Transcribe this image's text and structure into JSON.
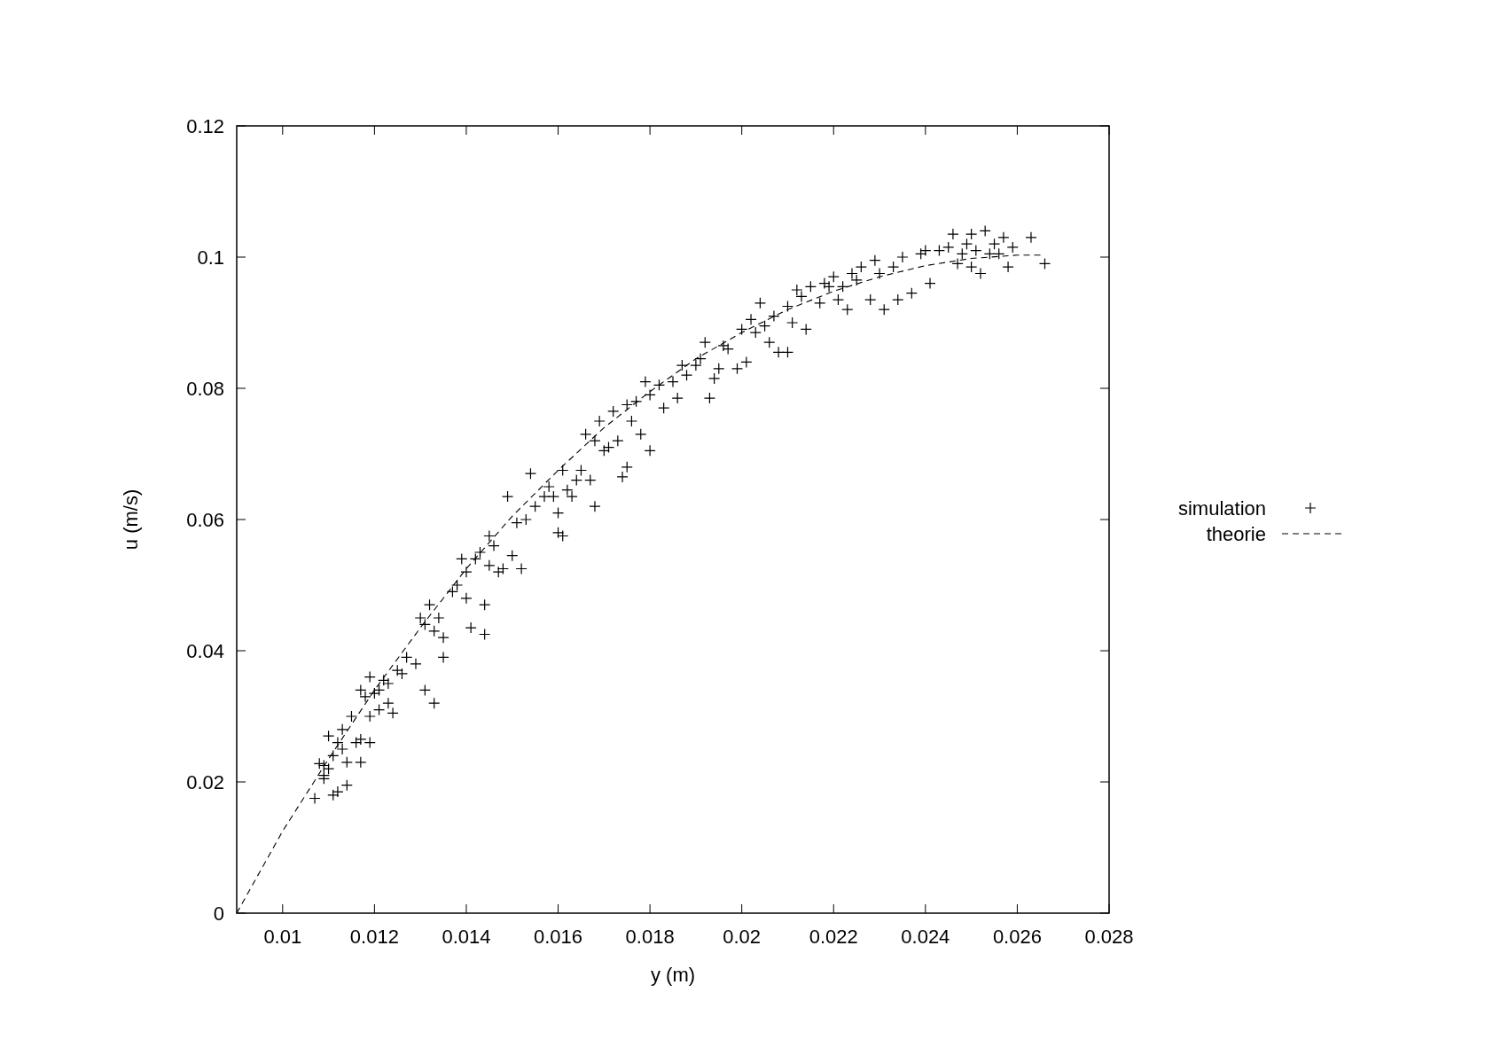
{
  "chart_data": {
    "type": "scatter",
    "xlabel": "y (m)",
    "ylabel": "u (m/s)",
    "xlim": [
      0.009,
      0.028
    ],
    "xticks": [
      0.01,
      0.012,
      0.014,
      0.016,
      0.018,
      0.02,
      0.022,
      0.024,
      0.026,
      0.028
    ],
    "ylim": [
      0,
      0.12
    ],
    "yticks": [
      0,
      0.02,
      0.04,
      0.06,
      0.08,
      0.1,
      0.12
    ],
    "grid": false,
    "legend": "right",
    "series": [
      {
        "name": "simulation",
        "marker": "cross",
        "color": "#000000",
        "x": [
          0.0107,
          0.0108,
          0.0109,
          0.0109,
          0.0109,
          0.011,
          0.011,
          0.0111,
          0.0111,
          0.0112,
          0.0112,
          0.0113,
          0.0113,
          0.0114,
          0.0114,
          0.0115,
          0.0116,
          0.0117,
          0.0117,
          0.0117,
          0.0118,
          0.0119,
          0.0119,
          0.0119,
          0.012,
          0.0121,
          0.0121,
          0.0122,
          0.0123,
          0.0123,
          0.0124,
          0.0125,
          0.0126,
          0.0127,
          0.0129,
          0.013,
          0.0131,
          0.0131,
          0.0132,
          0.0133,
          0.0133,
          0.0134,
          0.0135,
          0.0135,
          0.0137,
          0.0138,
          0.0139,
          0.014,
          0.014,
          0.0141,
          0.0142,
          0.0143,
          0.0144,
          0.0144,
          0.0145,
          0.0145,
          0.0146,
          0.0147,
          0.0148,
          0.0149,
          0.015,
          0.0151,
          0.0152,
          0.0153,
          0.0154,
          0.0155,
          0.0157,
          0.0158,
          0.0159,
          0.016,
          0.016,
          0.0161,
          0.0161,
          0.0162,
          0.0163,
          0.0164,
          0.0165,
          0.0166,
          0.0167,
          0.0168,
          0.0168,
          0.0169,
          0.017,
          0.0171,
          0.0172,
          0.0173,
          0.0174,
          0.0175,
          0.0175,
          0.0176,
          0.0177,
          0.0178,
          0.0179,
          0.018,
          0.018,
          0.0182,
          0.0183,
          0.0185,
          0.0186,
          0.0187,
          0.0188,
          0.019,
          0.0191,
          0.0192,
          0.0193,
          0.0194,
          0.0195,
          0.0196,
          0.0197,
          0.0199,
          0.02,
          0.0201,
          0.0202,
          0.0203,
          0.0204,
          0.0205,
          0.0206,
          0.0207,
          0.0208,
          0.021,
          0.021,
          0.0211,
          0.0212,
          0.0213,
          0.0214,
          0.0215,
          0.0217,
          0.0218,
          0.0219,
          0.022,
          0.0221,
          0.0222,
          0.0223,
          0.0224,
          0.0225,
          0.0226,
          0.0228,
          0.0229,
          0.023,
          0.0231,
          0.0233,
          0.0234,
          0.0235,
          0.0237,
          0.0239,
          0.024,
          0.0241,
          0.0243,
          0.0245,
          0.0246,
          0.0247,
          0.0248,
          0.0249,
          0.025,
          0.025,
          0.0251,
          0.0252,
          0.0253,
          0.0254,
          0.0255,
          0.0256,
          0.0257,
          0.0258,
          0.0259,
          0.0263,
          0.0266
        ],
        "values": [
          0.0175,
          0.0228,
          0.0205,
          0.021,
          0.0225,
          0.027,
          0.022,
          0.024,
          0.018,
          0.0185,
          0.026,
          0.028,
          0.025,
          0.0195,
          0.023,
          0.03,
          0.026,
          0.0265,
          0.023,
          0.034,
          0.033,
          0.036,
          0.03,
          0.026,
          0.0335,
          0.034,
          0.031,
          0.0355,
          0.035,
          0.032,
          0.0305,
          0.037,
          0.0365,
          0.039,
          0.038,
          0.045,
          0.034,
          0.044,
          0.047,
          0.032,
          0.043,
          0.045,
          0.039,
          0.042,
          0.049,
          0.05,
          0.054,
          0.048,
          0.052,
          0.0435,
          0.054,
          0.055,
          0.0425,
          0.047,
          0.0575,
          0.053,
          0.056,
          0.052,
          0.0525,
          0.0635,
          0.0545,
          0.0595,
          0.0525,
          0.06,
          0.067,
          0.062,
          0.0635,
          0.065,
          0.0635,
          0.061,
          0.058,
          0.0675,
          0.0575,
          0.0645,
          0.0635,
          0.066,
          0.0675,
          0.073,
          0.066,
          0.072,
          0.062,
          0.075,
          0.0705,
          0.071,
          0.0765,
          0.072,
          0.0665,
          0.0775,
          0.068,
          0.075,
          0.078,
          0.073,
          0.081,
          0.0705,
          0.079,
          0.0805,
          0.077,
          0.081,
          0.0785,
          0.0835,
          0.082,
          0.0835,
          0.0845,
          0.087,
          0.0785,
          0.0815,
          0.083,
          0.0865,
          0.086,
          0.083,
          0.089,
          0.084,
          0.0905,
          0.0885,
          0.093,
          0.0895,
          0.087,
          0.091,
          0.0855,
          0.0925,
          0.0855,
          0.09,
          0.095,
          0.094,
          0.089,
          0.0955,
          0.093,
          0.096,
          0.0955,
          0.097,
          0.0935,
          0.0955,
          0.092,
          0.0975,
          0.0965,
          0.0985,
          0.0935,
          0.0995,
          0.0975,
          0.092,
          0.0985,
          0.0935,
          0.1,
          0.0945,
          0.1005,
          0.101,
          0.096,
          0.101,
          0.1015,
          0.1035,
          0.099,
          0.1005,
          0.102,
          0.1035,
          0.0985,
          0.101,
          0.0975,
          0.104,
          0.1005,
          0.102,
          0.1005,
          0.103,
          0.0985,
          0.1015,
          0.103,
          0.099
        ]
      },
      {
        "name": "theorie",
        "type": "line",
        "line_style": "dashed",
        "color": "#000000",
        "x": [
          0.009,
          0.01,
          0.011,
          0.012,
          0.013,
          0.014,
          0.015,
          0.016,
          0.017,
          0.018,
          0.019,
          0.02,
          0.021,
          0.022,
          0.023,
          0.024,
          0.025,
          0.026,
          0.0266
        ],
        "values": [
          0,
          0.0125,
          0.0235,
          0.034,
          0.0435,
          0.0525,
          0.0605,
          0.0675,
          0.074,
          0.0795,
          0.0845,
          0.0885,
          0.092,
          0.0948,
          0.097,
          0.0987,
          0.0998,
          0.1003,
          0.1003
        ]
      }
    ]
  }
}
